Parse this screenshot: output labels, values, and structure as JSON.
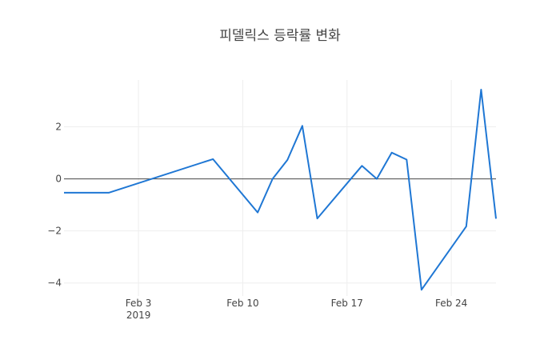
{
  "chart_data": {
    "type": "line",
    "title": "피델릭스 등락률 변화",
    "xlabel": "",
    "ylabel": "",
    "line_color": "#1f77d4",
    "xlim": [
      "2019-01-29",
      "2019-02-27"
    ],
    "ylim": [
      -4.5,
      3.8
    ],
    "x_ticks": [
      {
        "date": "2019-02-03",
        "label": "Feb 3",
        "sublabel": "2019"
      },
      {
        "date": "2019-02-10",
        "label": "Feb 10",
        "sublabel": ""
      },
      {
        "date": "2019-02-17",
        "label": "Feb 17",
        "sublabel": ""
      },
      {
        "date": "2019-02-24",
        "label": "Feb 24",
        "sublabel": ""
      }
    ],
    "y_ticks": [
      {
        "value": 2,
        "label": "2"
      },
      {
        "value": 0,
        "label": "0"
      },
      {
        "value": -2,
        "label": "−2"
      },
      {
        "value": -4,
        "label": "−4"
      }
    ],
    "grid": true,
    "legend": "none",
    "series": [
      {
        "x": [
          "2019-01-29",
          "2019-02-01",
          "2019-02-08",
          "2019-02-11",
          "2019-02-12",
          "2019-02-13",
          "2019-02-14",
          "2019-02-15",
          "2019-02-18",
          "2019-02-19",
          "2019-02-20",
          "2019-02-21",
          "2019-02-22",
          "2019-02-25",
          "2019-02-26",
          "2019-02-27"
        ],
        "y": [
          -0.53,
          -0.53,
          0.76,
          -1.29,
          0.0,
          0.73,
          2.04,
          -1.52,
          0.5,
          0.0,
          1.01,
          0.74,
          -4.26,
          -1.83,
          3.43,
          -1.53
        ]
      }
    ]
  }
}
